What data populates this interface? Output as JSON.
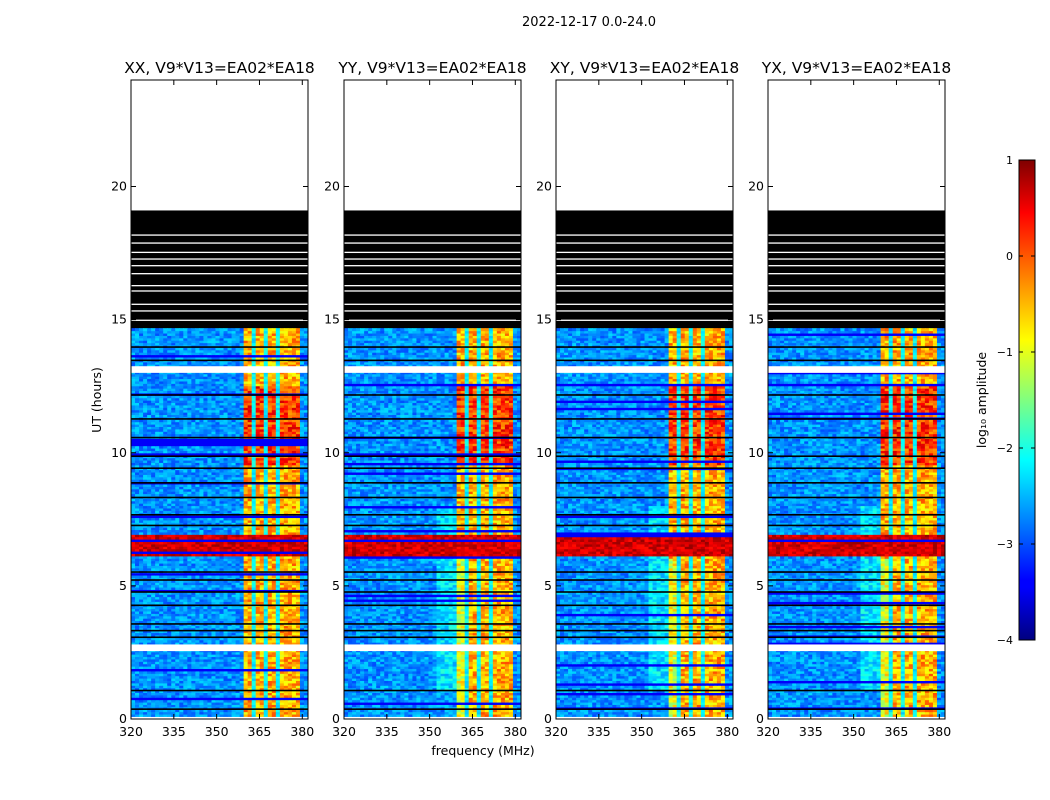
{
  "figure": {
    "suptitle": "2022-12-17 0.0-24.0",
    "xlabel": "frequency (MHz)",
    "ylabel": "UT (hours)",
    "colorbar_label": "log₁₀ amplitude"
  },
  "chart_data": {
    "type": "heatmap",
    "title": "2022-12-17 0.0-24.0",
    "xlabel": "frequency (MHz)",
    "ylabel": "UT (hours)",
    "xlim": [
      320,
      382
    ],
    "ylim": [
      0,
      24
    ],
    "xticks": [
      320,
      335,
      350,
      365,
      380
    ],
    "xtick_labels": [
      "320",
      "335",
      "350",
      "365",
      "380"
    ],
    "yticks": [
      0,
      5,
      10,
      15,
      20
    ],
    "ytick_labels": [
      "0",
      "5",
      "10",
      "15",
      "20"
    ],
    "colorbar": {
      "label": "log10 amplitude",
      "range": [
        -4,
        1
      ],
      "ticks": [
        1,
        0,
        -1,
        -2,
        -3,
        -4
      ],
      "tick_labels": [
        "1",
        "0",
        "−1",
        "−2",
        "−3",
        "−4"
      ],
      "colormap": "jet"
    },
    "panels": [
      {
        "title": "XX, V9*V13=EA02*EA18",
        "polarization": "XX"
      },
      {
        "title": "YY, V9*V13=EA02*EA18",
        "polarization": "YY"
      },
      {
        "title": "XY, V9*V13=EA02*EA18",
        "polarization": "XY"
      },
      {
        "title": "YX, V9*V13=EA02*EA18",
        "polarization": "YX"
      }
    ],
    "features": {
      "data_time_range_hours": [
        0.1,
        14.6
      ],
      "flagged_black_time_range_hours": [
        14.6,
        19.1
      ],
      "empty_time_range_hours": [
        19.1,
        24.0
      ],
      "rfi_frequency_range_mhz": [
        359.5,
        379.0
      ],
      "strong_broadband_event_hours": [
        6.1,
        6.9
      ],
      "white_gap_hours": [
        [
          2.55,
          2.8
        ],
        [
          13.0,
          13.25
        ]
      ]
    }
  }
}
